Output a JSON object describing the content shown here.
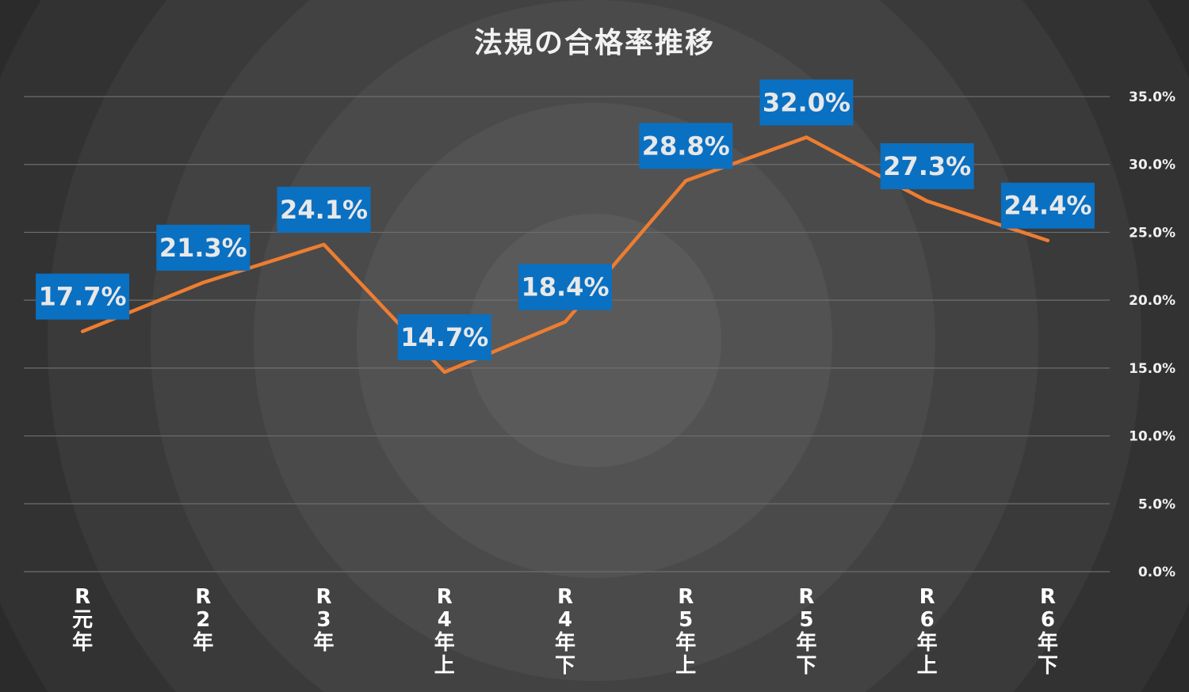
{
  "chart_data": {
    "type": "line",
    "title": "法規の合格率推移",
    "xlabel": "",
    "ylabel": "",
    "categories": [
      "R元年",
      "R2年",
      "R3年",
      "R4年上",
      "R4年下",
      "R5年上",
      "R5年下",
      "R6年上",
      "R6年下"
    ],
    "category_lines": [
      [
        "R",
        "元",
        "年"
      ],
      [
        "R",
        "2",
        "年"
      ],
      [
        "R",
        "3",
        "年"
      ],
      [
        "R",
        "4",
        "年",
        "上"
      ],
      [
        "R",
        "4",
        "年",
        "下"
      ],
      [
        "R",
        "5",
        "年",
        "上"
      ],
      [
        "R",
        "5",
        "年",
        "下"
      ],
      [
        "R",
        "6",
        "年",
        "上"
      ],
      [
        "R",
        "6",
        "年",
        "下"
      ]
    ],
    "series": [
      {
        "values": [
          17.7,
          21.3,
          24.1,
          14.7,
          18.4,
          28.8,
          32.0,
          27.3,
          24.4
        ],
        "labels": [
          "17.7%",
          "21.3%",
          "24.1%",
          "14.7%",
          "18.4%",
          "28.8%",
          "32.0%",
          "27.3%",
          "24.4%"
        ]
      }
    ],
    "ylim": [
      0,
      35
    ],
    "yticks": [
      "0.0%",
      "5.0%",
      "10.0%",
      "15.0%",
      "20.0%",
      "25.0%",
      "30.0%",
      "35.0%"
    ],
    "ytick_values": [
      0,
      5,
      10,
      15,
      20,
      25,
      30,
      35
    ],
    "yaxis_side": "right",
    "grid": true,
    "legend": "none",
    "colors": {
      "line": "#ed7d31",
      "label_box": "#0a70c2",
      "label_text": "#e8e8e8",
      "grid": "#6e6e6e"
    }
  }
}
